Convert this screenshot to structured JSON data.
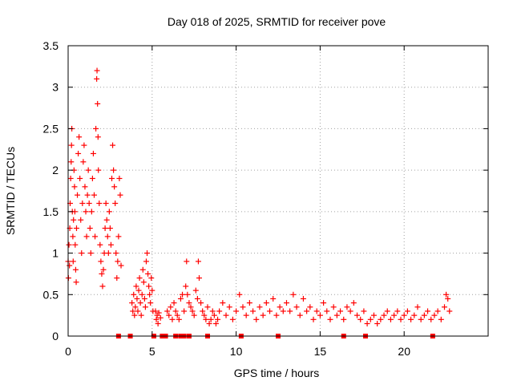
{
  "chart_data": {
    "type": "scatter",
    "title": "Day 018 of 2025, SRMTID for receiver pove",
    "xlabel": "GPS time / hours",
    "ylabel": "SRMTID / TECUs",
    "xlim": [
      0,
      25
    ],
    "ylim": [
      0,
      3.5
    ],
    "xticks": [
      0,
      5,
      10,
      15,
      20
    ],
    "xtick_labels": [
      "0",
      "5",
      "10",
      "15",
      "20"
    ],
    "yticks": [
      0,
      0.5,
      1,
      1.5,
      2,
      2.5,
      3,
      3.5
    ],
    "ytick_labels": [
      "0",
      "0.5",
      "1",
      "1.5",
      "2",
      "2.5",
      "3",
      "3.5"
    ],
    "grid": true,
    "marker": "+",
    "color": "#ff0000",
    "series": [
      {
        "name": "SRMTID",
        "points": [
          [
            0.0,
            0.9
          ],
          [
            0.02,
            0.7
          ],
          [
            0.05,
            1.1
          ],
          [
            0.08,
            0.85
          ],
          [
            0.1,
            1.3
          ],
          [
            0.12,
            1.6
          ],
          [
            0.15,
            1.9
          ],
          [
            0.18,
            2.1
          ],
          [
            0.2,
            2.3
          ],
          [
            0.22,
            2.5
          ],
          [
            0.25,
            1.5
          ],
          [
            0.28,
            1.2
          ],
          [
            0.3,
            0.9
          ],
          [
            0.32,
            1.4
          ],
          [
            0.35,
            2.0
          ],
          [
            0.38,
            1.8
          ],
          [
            0.4,
            1.5
          ],
          [
            0.42,
            1.1
          ],
          [
            0.45,
            0.8
          ],
          [
            0.48,
            0.65
          ],
          [
            0.5,
            1.3
          ],
          [
            0.55,
            1.7
          ],
          [
            0.6,
            2.2
          ],
          [
            0.65,
            2.4
          ],
          [
            0.7,
            1.9
          ],
          [
            0.75,
            1.4
          ],
          [
            0.8,
            1.0
          ],
          [
            0.85,
            1.6
          ],
          [
            0.9,
            2.1
          ],
          [
            0.95,
            2.3
          ],
          [
            1.0,
            1.8
          ],
          [
            1.05,
            1.5
          ],
          [
            1.1,
            1.2
          ],
          [
            1.15,
            1.7
          ],
          [
            1.2,
            2.0
          ],
          [
            1.25,
            1.6
          ],
          [
            1.3,
            1.3
          ],
          [
            1.35,
            1.0
          ],
          [
            1.4,
            1.5
          ],
          [
            1.45,
            1.9
          ],
          [
            1.5,
            2.2
          ],
          [
            1.55,
            1.7
          ],
          [
            1.6,
            1.2
          ],
          [
            1.65,
            2.5
          ],
          [
            1.7,
            3.1
          ],
          [
            1.72,
            3.2
          ],
          [
            1.75,
            2.8
          ],
          [
            1.78,
            2.4
          ],
          [
            1.8,
            2.0
          ],
          [
            1.85,
            1.6
          ],
          [
            1.9,
            1.1
          ],
          [
            1.95,
            0.9
          ],
          [
            2.0,
            0.75
          ],
          [
            2.05,
            0.6
          ],
          [
            2.1,
            0.8
          ],
          [
            2.15,
            1.0
          ],
          [
            2.2,
            1.3
          ],
          [
            2.25,
            1.6
          ],
          [
            2.3,
            1.4
          ],
          [
            2.35,
            1.2
          ],
          [
            2.4,
            1.0
          ],
          [
            2.45,
            1.5
          ],
          [
            2.5,
            1.3
          ],
          [
            2.55,
            1.1
          ],
          [
            2.6,
            1.9
          ],
          [
            2.65,
            2.3
          ],
          [
            2.7,
            2.0
          ],
          [
            2.75,
            1.8
          ],
          [
            2.8,
            1.6
          ],
          [
            2.85,
            1.0
          ],
          [
            2.9,
            0.7
          ],
          [
            2.95,
            0.9
          ],
          [
            3.0,
            1.2
          ],
          [
            3.05,
            1.9
          ],
          [
            3.1,
            1.7
          ],
          [
            3.15,
            0.85
          ],
          [
            3.8,
            0.4
          ],
          [
            3.85,
            0.3
          ],
          [
            3.9,
            0.5
          ],
          [
            3.95,
            0.25
          ],
          [
            4.0,
            0.35
          ],
          [
            4.05,
            0.6
          ],
          [
            4.1,
            0.45
          ],
          [
            4.15,
            0.3
          ],
          [
            4.2,
            0.55
          ],
          [
            4.25,
            0.7
          ],
          [
            4.3,
            0.4
          ],
          [
            4.35,
            0.25
          ],
          [
            4.4,
            0.5
          ],
          [
            4.45,
            0.8
          ],
          [
            4.5,
            0.65
          ],
          [
            4.55,
            0.45
          ],
          [
            4.6,
            0.35
          ],
          [
            4.65,
            0.9
          ],
          [
            4.7,
            1.0
          ],
          [
            4.75,
            0.75
          ],
          [
            4.8,
            0.6
          ],
          [
            4.85,
            0.5
          ],
          [
            4.9,
            0.4
          ],
          [
            4.95,
            0.7
          ],
          [
            5.0,
            0.55
          ],
          [
            5.05,
            0.3
          ],
          [
            5.2,
            0.3
          ],
          [
            5.25,
            0.2
          ],
          [
            5.3,
            0.25
          ],
          [
            5.35,
            0.15
          ],
          [
            5.4,
            0.28
          ],
          [
            5.5,
            0.22
          ],
          [
            5.9,
            0.3
          ],
          [
            6.0,
            0.25
          ],
          [
            6.1,
            0.35
          ],
          [
            6.2,
            0.2
          ],
          [
            6.3,
            0.4
          ],
          [
            6.4,
            0.3
          ],
          [
            6.5,
            0.25
          ],
          [
            6.6,
            0.2
          ],
          [
            6.7,
            0.45
          ],
          [
            6.8,
            0.5
          ],
          [
            6.9,
            0.3
          ],
          [
            7.0,
            0.6
          ],
          [
            7.05,
            0.9
          ],
          [
            7.1,
            0.5
          ],
          [
            7.2,
            0.4
          ],
          [
            7.3,
            0.35
          ],
          [
            7.4,
            0.3
          ],
          [
            7.5,
            0.25
          ],
          [
            7.6,
            0.55
          ],
          [
            7.7,
            0.45
          ],
          [
            7.75,
            0.9
          ],
          [
            7.8,
            0.7
          ],
          [
            7.9,
            0.4
          ],
          [
            8.0,
            0.3
          ],
          [
            8.1,
            0.25
          ],
          [
            8.2,
            0.2
          ],
          [
            8.3,
            0.35
          ],
          [
            8.4,
            0.15
          ],
          [
            8.5,
            0.2
          ],
          [
            8.6,
            0.3
          ],
          [
            8.7,
            0.25
          ],
          [
            8.8,
            0.15
          ],
          [
            8.9,
            0.2
          ],
          [
            9.0,
            0.3
          ],
          [
            9.2,
            0.4
          ],
          [
            9.4,
            0.25
          ],
          [
            9.6,
            0.35
          ],
          [
            9.8,
            0.2
          ],
          [
            10.0,
            0.3
          ],
          [
            10.2,
            0.5
          ],
          [
            10.4,
            0.35
          ],
          [
            10.6,
            0.25
          ],
          [
            10.8,
            0.4
          ],
          [
            11.0,
            0.3
          ],
          [
            11.2,
            0.2
          ],
          [
            11.4,
            0.35
          ],
          [
            11.6,
            0.25
          ],
          [
            11.8,
            0.4
          ],
          [
            12.0,
            0.3
          ],
          [
            12.2,
            0.45
          ],
          [
            12.4,
            0.25
          ],
          [
            12.6,
            0.35
          ],
          [
            12.8,
            0.3
          ],
          [
            13.0,
            0.4
          ],
          [
            13.2,
            0.3
          ],
          [
            13.4,
            0.5
          ],
          [
            13.6,
            0.35
          ],
          [
            13.8,
            0.25
          ],
          [
            14.0,
            0.45
          ],
          [
            14.2,
            0.3
          ],
          [
            14.4,
            0.35
          ],
          [
            14.6,
            0.2
          ],
          [
            14.8,
            0.3
          ],
          [
            15.0,
            0.25
          ],
          [
            15.2,
            0.4
          ],
          [
            15.4,
            0.3
          ],
          [
            15.6,
            0.2
          ],
          [
            15.8,
            0.35
          ],
          [
            16.0,
            0.25
          ],
          [
            16.2,
            0.3
          ],
          [
            16.4,
            0.2
          ],
          [
            16.6,
            0.35
          ],
          [
            16.8,
            0.3
          ],
          [
            17.0,
            0.4
          ],
          [
            17.2,
            0.25
          ],
          [
            17.4,
            0.2
          ],
          [
            17.6,
            0.3
          ],
          [
            17.8,
            0.15
          ],
          [
            18.0,
            0.2
          ],
          [
            18.2,
            0.25
          ],
          [
            18.4,
            0.15
          ],
          [
            18.6,
            0.2
          ],
          [
            18.8,
            0.25
          ],
          [
            19.0,
            0.3
          ],
          [
            19.2,
            0.2
          ],
          [
            19.4,
            0.25
          ],
          [
            19.6,
            0.3
          ],
          [
            19.8,
            0.2
          ],
          [
            20.0,
            0.25
          ],
          [
            20.2,
            0.3
          ],
          [
            20.4,
            0.2
          ],
          [
            20.6,
            0.25
          ],
          [
            20.8,
            0.35
          ],
          [
            21.0,
            0.2
          ],
          [
            21.2,
            0.25
          ],
          [
            21.4,
            0.3
          ],
          [
            21.6,
            0.2
          ],
          [
            21.8,
            0.25
          ],
          [
            22.0,
            0.3
          ],
          [
            22.2,
            0.2
          ],
          [
            22.4,
            0.35
          ],
          [
            22.5,
            0.5
          ],
          [
            22.6,
            0.45
          ],
          [
            22.7,
            0.3
          ],
          [
            3.0,
            0.0
          ],
          [
            3.7,
            0.0
          ],
          [
            5.1,
            0.0
          ],
          [
            5.6,
            0.0
          ],
          [
            5.8,
            0.0
          ],
          [
            6.4,
            0.0
          ],
          [
            6.7,
            0.0
          ],
          [
            6.9,
            0.0
          ],
          [
            7.2,
            0.0
          ],
          [
            8.3,
            0.0
          ],
          [
            10.3,
            0.0
          ],
          [
            12.5,
            0.0
          ],
          [
            16.4,
            0.0
          ],
          [
            17.7,
            0.0
          ],
          [
            21.7,
            0.0
          ]
        ]
      }
    ]
  }
}
